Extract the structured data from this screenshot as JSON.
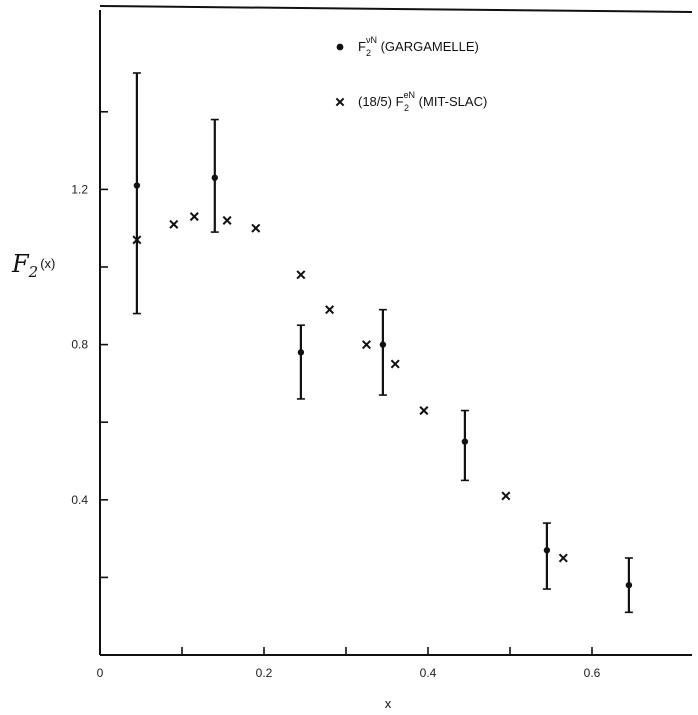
{
  "chart_data": {
    "type": "scatter",
    "title": "",
    "xlabel": "x",
    "ylabel": {
      "main": "F",
      "sub": "2",
      "paren": "(x)"
    },
    "xlim": [
      0,
      0.72
    ],
    "ylim": [
      0,
      1.65
    ],
    "x_ticks": [
      {
        "value": 0,
        "label": "0"
      },
      {
        "value": 0.1,
        "label": ""
      },
      {
        "value": 0.2,
        "label": "0.2"
      },
      {
        "value": 0.3,
        "label": ""
      },
      {
        "value": 0.4,
        "label": "0.4"
      },
      {
        "value": 0.5,
        "label": ""
      },
      {
        "value": 0.6,
        "label": "0.6"
      }
    ],
    "y_ticks": [
      {
        "value": 0.2,
        "label": ""
      },
      {
        "value": 0.4,
        "label": "0.4"
      },
      {
        "value": 0.6,
        "label": ""
      },
      {
        "value": 0.8,
        "label": "0.8"
      },
      {
        "value": 1.0,
        "label": ""
      },
      {
        "value": 1.2,
        "label": "1.2"
      },
      {
        "value": 1.4,
        "label": ""
      }
    ],
    "legend_position": "top-right",
    "series": [
      {
        "key": "gargamelle",
        "legend": {
          "base": "F",
          "sub": "2",
          "sup": "νN",
          "suffix": " (GARGAMELLE)"
        },
        "marker": "dot",
        "points": [
          {
            "x": 0.045,
            "y": 1.21,
            "lo": 0.88,
            "hi": 1.5
          },
          {
            "x": 0.14,
            "y": 1.23,
            "lo": 1.09,
            "hi": 1.38
          },
          {
            "x": 0.245,
            "y": 0.78,
            "lo": 0.66,
            "hi": 0.85
          },
          {
            "x": 0.345,
            "y": 0.8,
            "lo": 0.67,
            "hi": 0.89
          },
          {
            "x": 0.445,
            "y": 0.55,
            "lo": 0.45,
            "hi": 0.63
          },
          {
            "x": 0.545,
            "y": 0.27,
            "lo": 0.17,
            "hi": 0.34
          },
          {
            "x": 0.645,
            "y": 0.18,
            "lo": 0.11,
            "hi": 0.25
          }
        ]
      },
      {
        "key": "mit-slac",
        "legend": {
          "prefix": "(18/5) ",
          "base": "F",
          "sub": "2",
          "sup": "eN",
          "suffix": " (MIT-SLAC)"
        },
        "marker": "x",
        "points": [
          {
            "x": 0.045,
            "y": 1.07
          },
          {
            "x": 0.09,
            "y": 1.11
          },
          {
            "x": 0.115,
            "y": 1.13
          },
          {
            "x": 0.155,
            "y": 1.12
          },
          {
            "x": 0.19,
            "y": 1.1
          },
          {
            "x": 0.245,
            "y": 0.98
          },
          {
            "x": 0.28,
            "y": 0.89
          },
          {
            "x": 0.325,
            "y": 0.8
          },
          {
            "x": 0.36,
            "y": 0.75
          },
          {
            "x": 0.395,
            "y": 0.63
          },
          {
            "x": 0.495,
            "y": 0.41
          },
          {
            "x": 0.565,
            "y": 0.25
          }
        ]
      }
    ]
  }
}
